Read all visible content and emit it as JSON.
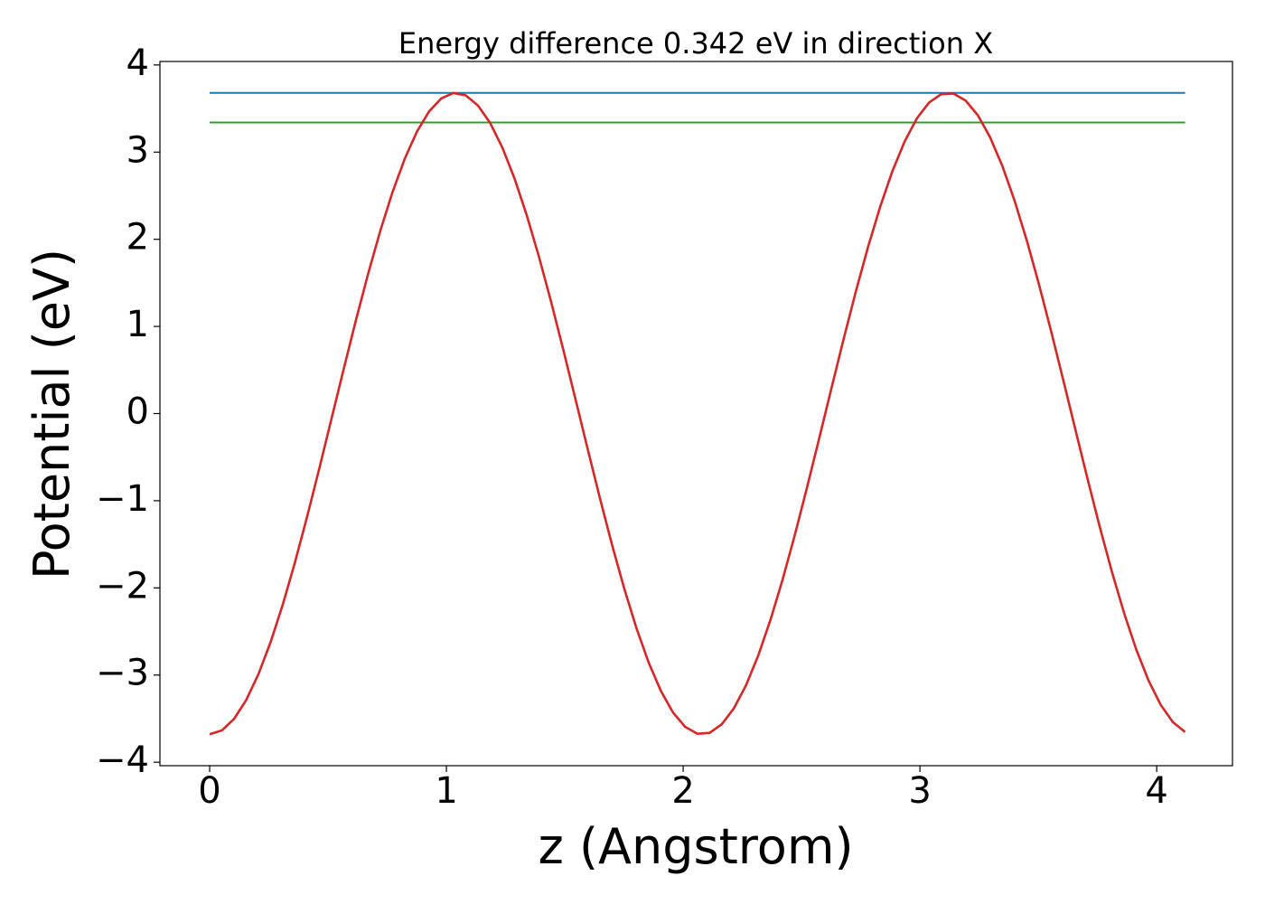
{
  "chart_data": {
    "type": "line",
    "title": "Energy difference 0.342 eV in direction X",
    "xlabel": "z (Angstrom)",
    "ylabel": "Potential (eV)",
    "xlim": [
      -0.21,
      4.32
    ],
    "ylim": [
      -4.04,
      4.04
    ],
    "x_ticks": [
      0,
      1,
      2,
      3,
      4
    ],
    "x_tick_labels": [
      "0",
      "1",
      "2",
      "3",
      "4"
    ],
    "y_ticks": [
      -4,
      -3,
      -2,
      -1,
      0,
      1,
      2,
      3,
      4
    ],
    "y_tick_labels": [
      "−4",
      "−3",
      "−2",
      "−1",
      "0",
      "1",
      "2",
      "3",
      "4"
    ],
    "grid": false,
    "legend": "none",
    "series": [
      {
        "color": "#1f77b4",
        "x": [
          0,
          4.12
        ],
        "y": [
          3.68,
          3.68
        ]
      },
      {
        "color": "#2ca02c",
        "x": [
          0,
          4.12
        ],
        "y": [
          3.34,
          3.34
        ]
      },
      {
        "color": "#d62728",
        "function_form": "cosine",
        "x_range": [
          0,
          4.12
        ],
        "amplitude": 3.68,
        "period": 2.08,
        "peak_x": 1.04,
        "peak_y": 3.68,
        "trough_y": -3.68,
        "x": [
          0,
          0.26,
          0.52,
          0.78,
          1.04,
          1.3,
          1.56,
          1.82,
          2.08,
          2.34,
          2.6,
          2.86,
          3.12,
          3.38,
          3.64,
          3.9,
          4.12
        ],
        "y": [
          -3.68,
          -2.6,
          0.0,
          2.6,
          3.68,
          2.6,
          0.0,
          -2.6,
          -3.68,
          -2.6,
          0.0,
          2.6,
          3.68,
          2.6,
          0.0,
          -2.6,
          -3.64
        ]
      }
    ]
  }
}
